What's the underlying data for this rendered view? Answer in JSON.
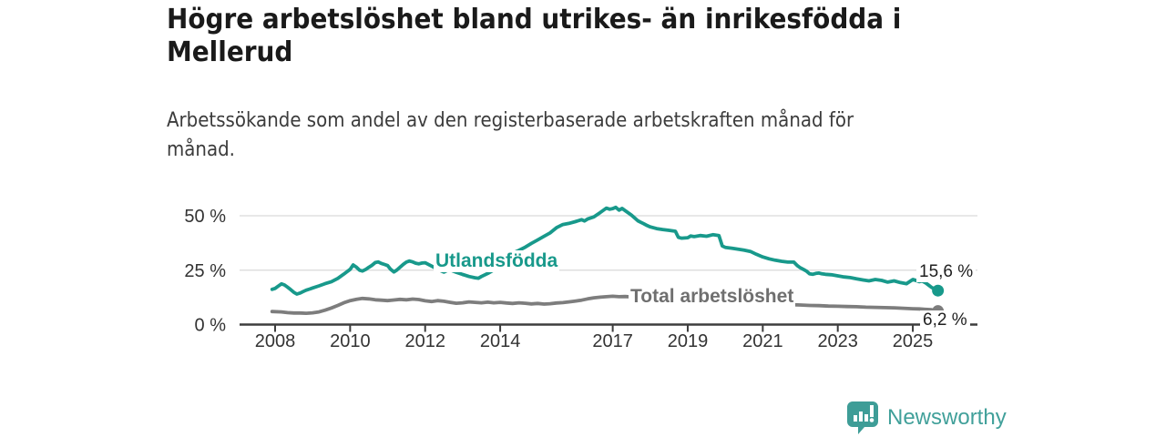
{
  "header": {
    "title_line1": "Högre arbetslöshet bland utrikes- än inrikesfödda i",
    "title_line2": "Mellerud",
    "subtitle_line1": "Arbetssökande som andel av den registerbaserade arbetskraften månad för",
    "subtitle_line2": "månad."
  },
  "footer": {
    "brand": "Newsworthy",
    "brand_color": "#41a09a",
    "logo_icon": "speech-bubble-bar-chart-exclamation"
  },
  "chart_data": {
    "type": "line",
    "title": "Högre arbetslöshet bland utrikes- än inrikesfödda i Mellerud",
    "subtitle": "Arbetssökande som andel av den registerbaserade arbetskraften månad för månad.",
    "grid": true,
    "grid_color": "#d9d9d9",
    "axis_color": "#3d3d3d",
    "legend_position": "inline-on-line",
    "x_axis": {
      "unit": "year",
      "ticks": [
        2008,
        2010,
        2012,
        2014,
        2017,
        2019,
        2021,
        2023,
        2025
      ],
      "range": [
        2007.9,
        2025.7
      ]
    },
    "y_axis": {
      "ticks": [
        0,
        25,
        50
      ],
      "tick_labels": [
        "0 %",
        "25 %",
        "50 %"
      ],
      "ylim": [
        0,
        55
      ],
      "unit": "%"
    },
    "series": [
      {
        "name": "Utlandsfödda",
        "color": "#18998b",
        "end_label": "15,6 %",
        "end_value": 15.6,
        "points": [
          [
            2007.92,
            16.2
          ],
          [
            2008.0,
            16.6
          ],
          [
            2008.08,
            17.6
          ],
          [
            2008.17,
            18.7
          ],
          [
            2008.25,
            18.2
          ],
          [
            2008.33,
            17.2
          ],
          [
            2008.42,
            16.0
          ],
          [
            2008.5,
            14.8
          ],
          [
            2008.58,
            14.0
          ],
          [
            2008.67,
            14.5
          ],
          [
            2008.75,
            15.2
          ],
          [
            2008.83,
            15.8
          ],
          [
            2008.92,
            16.3
          ],
          [
            2009.0,
            16.8
          ],
          [
            2009.17,
            17.8
          ],
          [
            2009.33,
            18.8
          ],
          [
            2009.5,
            19.7
          ],
          [
            2009.67,
            21.2
          ],
          [
            2009.83,
            23.2
          ],
          [
            2010.0,
            25.4
          ],
          [
            2010.08,
            27.4
          ],
          [
            2010.17,
            26.3
          ],
          [
            2010.25,
            25.0
          ],
          [
            2010.33,
            24.6
          ],
          [
            2010.42,
            25.4
          ],
          [
            2010.5,
            26.3
          ],
          [
            2010.58,
            27.2
          ],
          [
            2010.67,
            28.5
          ],
          [
            2010.75,
            28.8
          ],
          [
            2010.83,
            28.1
          ],
          [
            2010.92,
            27.6
          ],
          [
            2011.0,
            27.1
          ],
          [
            2011.08,
            25.4
          ],
          [
            2011.17,
            24.2
          ],
          [
            2011.25,
            25.1
          ],
          [
            2011.33,
            26.3
          ],
          [
            2011.42,
            27.7
          ],
          [
            2011.5,
            28.7
          ],
          [
            2011.58,
            29.2
          ],
          [
            2011.67,
            28.8
          ],
          [
            2011.75,
            28.2
          ],
          [
            2011.83,
            27.9
          ],
          [
            2011.92,
            28.3
          ],
          [
            2012.0,
            28.4
          ],
          [
            2012.17,
            26.9
          ],
          [
            2012.33,
            25.4
          ],
          [
            2012.5,
            24.1
          ],
          [
            2012.58,
            24.8
          ],
          [
            2012.67,
            25.1
          ],
          [
            2012.83,
            24.0
          ],
          [
            2013.0,
            23.0
          ],
          [
            2013.17,
            22.1
          ],
          [
            2013.33,
            21.5
          ],
          [
            2013.42,
            21.3
          ],
          [
            2013.5,
            22.1
          ],
          [
            2013.67,
            23.5
          ],
          [
            2013.83,
            25.1
          ],
          [
            2014.0,
            26.7
          ],
          [
            2014.17,
            29.6
          ],
          [
            2014.33,
            32.8
          ],
          [
            2014.5,
            34.1
          ],
          [
            2014.67,
            35.6
          ],
          [
            2014.83,
            37.3
          ],
          [
            2015.0,
            38.9
          ],
          [
            2015.17,
            40.6
          ],
          [
            2015.33,
            42.1
          ],
          [
            2015.5,
            44.5
          ],
          [
            2015.67,
            46.0
          ],
          [
            2015.83,
            46.5
          ],
          [
            2016.0,
            47.3
          ],
          [
            2016.17,
            48.2
          ],
          [
            2016.25,
            47.6
          ],
          [
            2016.33,
            48.5
          ],
          [
            2016.5,
            49.5
          ],
          [
            2016.67,
            51.5
          ],
          [
            2016.83,
            53.5
          ],
          [
            2016.92,
            53.0
          ],
          [
            2017.0,
            53.3
          ],
          [
            2017.08,
            53.9
          ],
          [
            2017.17,
            52.6
          ],
          [
            2017.25,
            53.4
          ],
          [
            2017.33,
            52.4
          ],
          [
            2017.42,
            51.3
          ],
          [
            2017.5,
            50.3
          ],
          [
            2017.58,
            49.1
          ],
          [
            2017.67,
            47.7
          ],
          [
            2017.75,
            47.0
          ],
          [
            2017.83,
            46.3
          ],
          [
            2017.92,
            45.5
          ],
          [
            2018.0,
            44.9
          ],
          [
            2018.17,
            44.1
          ],
          [
            2018.33,
            43.7
          ],
          [
            2018.5,
            43.3
          ],
          [
            2018.67,
            42.9
          ],
          [
            2018.75,
            40.1
          ],
          [
            2018.83,
            39.7
          ],
          [
            2019.0,
            39.9
          ],
          [
            2019.08,
            40.7
          ],
          [
            2019.17,
            40.4
          ],
          [
            2019.33,
            40.9
          ],
          [
            2019.5,
            40.6
          ],
          [
            2019.67,
            41.3
          ],
          [
            2019.83,
            40.9
          ],
          [
            2019.92,
            36.1
          ],
          [
            2020.0,
            35.5
          ],
          [
            2020.17,
            35.1
          ],
          [
            2020.33,
            34.7
          ],
          [
            2020.5,
            34.2
          ],
          [
            2020.67,
            33.6
          ],
          [
            2020.83,
            32.3
          ],
          [
            2021.0,
            31.1
          ],
          [
            2021.17,
            30.2
          ],
          [
            2021.33,
            29.6
          ],
          [
            2021.5,
            29.1
          ],
          [
            2021.67,
            28.7
          ],
          [
            2021.83,
            28.7
          ],
          [
            2021.92,
            27.1
          ],
          [
            2022.0,
            26.1
          ],
          [
            2022.08,
            25.4
          ],
          [
            2022.17,
            24.5
          ],
          [
            2022.25,
            23.3
          ],
          [
            2022.33,
            23.1
          ],
          [
            2022.42,
            23.5
          ],
          [
            2022.5,
            23.7
          ],
          [
            2022.58,
            23.3
          ],
          [
            2022.67,
            23.1
          ],
          [
            2022.83,
            22.9
          ],
          [
            2023.0,
            22.4
          ],
          [
            2023.17,
            21.9
          ],
          [
            2023.33,
            21.6
          ],
          [
            2023.5,
            21.0
          ],
          [
            2023.67,
            20.5
          ],
          [
            2023.83,
            20.1
          ],
          [
            2024.0,
            20.7
          ],
          [
            2024.17,
            20.3
          ],
          [
            2024.33,
            19.5
          ],
          [
            2024.5,
            20.1
          ],
          [
            2024.67,
            19.3
          ],
          [
            2024.83,
            18.8
          ],
          [
            2025.0,
            20.7
          ],
          [
            2025.08,
            20.3
          ],
          [
            2025.17,
            19.7
          ],
          [
            2025.25,
            20.0
          ],
          [
            2025.33,
            19.3
          ],
          [
            2025.42,
            18.1
          ],
          [
            2025.5,
            17.1
          ],
          [
            2025.58,
            16.3
          ],
          [
            2025.67,
            15.6
          ]
        ]
      },
      {
        "name": "Total arbetslöshet",
        "color": "#7d7d7d",
        "end_label": "6,2 %",
        "end_value": 6.2,
        "points": [
          [
            2007.92,
            6.0
          ],
          [
            2008.17,
            5.8
          ],
          [
            2008.33,
            5.5
          ],
          [
            2008.5,
            5.3
          ],
          [
            2008.67,
            5.3
          ],
          [
            2008.83,
            5.2
          ],
          [
            2009.0,
            5.4
          ],
          [
            2009.17,
            5.8
          ],
          [
            2009.33,
            6.6
          ],
          [
            2009.5,
            7.6
          ],
          [
            2009.67,
            8.8
          ],
          [
            2009.83,
            10.0
          ],
          [
            2010.0,
            11.0
          ],
          [
            2010.17,
            11.6
          ],
          [
            2010.33,
            12.0
          ],
          [
            2010.5,
            11.8
          ],
          [
            2010.67,
            11.4
          ],
          [
            2010.83,
            11.2
          ],
          [
            2011.0,
            11.0
          ],
          [
            2011.17,
            11.3
          ],
          [
            2011.33,
            11.6
          ],
          [
            2011.5,
            11.4
          ],
          [
            2011.67,
            11.7
          ],
          [
            2011.83,
            11.5
          ],
          [
            2012.0,
            10.9
          ],
          [
            2012.17,
            10.6
          ],
          [
            2012.33,
            11.0
          ],
          [
            2012.5,
            10.7
          ],
          [
            2012.67,
            10.2
          ],
          [
            2012.83,
            9.8
          ],
          [
            2013.0,
            10.0
          ],
          [
            2013.17,
            10.4
          ],
          [
            2013.33,
            10.2
          ],
          [
            2013.5,
            10.0
          ],
          [
            2013.67,
            10.3
          ],
          [
            2013.83,
            10.0
          ],
          [
            2014.0,
            10.2
          ],
          [
            2014.17,
            9.9
          ],
          [
            2014.33,
            9.7
          ],
          [
            2014.5,
            10.0
          ],
          [
            2014.67,
            9.8
          ],
          [
            2014.83,
            9.5
          ],
          [
            2015.0,
            9.7
          ],
          [
            2015.17,
            9.4
          ],
          [
            2015.33,
            9.6
          ],
          [
            2015.5,
            9.9
          ],
          [
            2015.67,
            10.1
          ],
          [
            2015.83,
            10.4
          ],
          [
            2016.0,
            10.8
          ],
          [
            2016.17,
            11.2
          ],
          [
            2016.33,
            11.8
          ],
          [
            2016.5,
            12.3
          ],
          [
            2016.67,
            12.6
          ],
          [
            2016.83,
            12.8
          ],
          [
            2017.0,
            13.0
          ],
          [
            2017.17,
            12.8
          ],
          [
            2017.33,
            12.9
          ],
          [
            2017.5,
            12.7
          ],
          [
            2018.0,
            12.2
          ],
          [
            2018.5,
            11.7
          ],
          [
            2019.0,
            11.2
          ],
          [
            2019.5,
            10.7
          ],
          [
            2020.0,
            10.3
          ],
          [
            2020.5,
            10.0
          ],
          [
            2021.0,
            9.6
          ],
          [
            2021.5,
            9.3
          ],
          [
            2022.0,
            9.0
          ],
          [
            2022.25,
            8.8
          ],
          [
            2022.5,
            8.7
          ],
          [
            2022.75,
            8.5
          ],
          [
            2023.0,
            8.4
          ],
          [
            2023.25,
            8.3
          ],
          [
            2023.5,
            8.2
          ],
          [
            2023.75,
            8.0
          ],
          [
            2024.0,
            7.9
          ],
          [
            2024.25,
            7.8
          ],
          [
            2024.5,
            7.7
          ],
          [
            2024.75,
            7.5
          ],
          [
            2025.0,
            7.3
          ],
          [
            2025.17,
            7.2
          ],
          [
            2025.33,
            7.0
          ],
          [
            2025.5,
            6.8
          ],
          [
            2025.67,
            6.2
          ]
        ]
      }
    ]
  }
}
